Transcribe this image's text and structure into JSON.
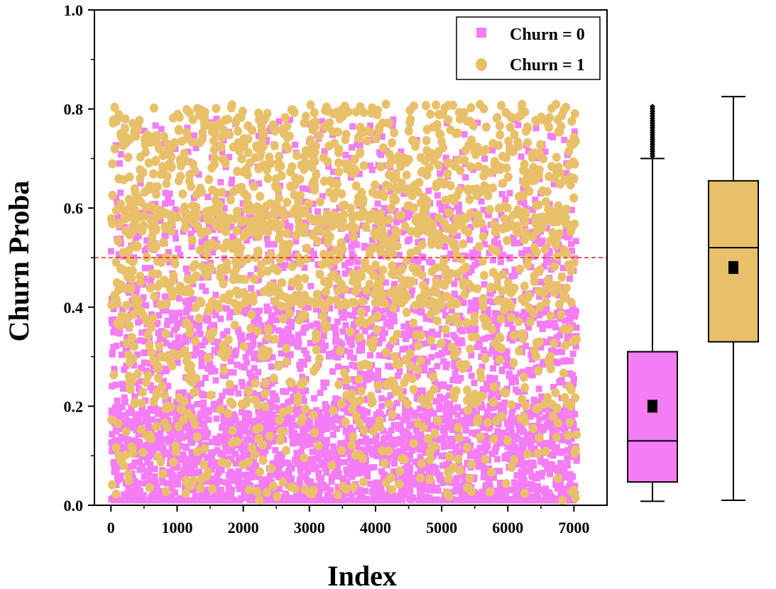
{
  "chart_data": {
    "type": "scatter",
    "xlabel": "Index",
    "ylabel": "Churn Proba",
    "xlim": [
      -250,
      7500
    ],
    "ylim": [
      0.0,
      1.0
    ],
    "xticks": [
      "0",
      "1000",
      "2000",
      "3000",
      "4000",
      "5000",
      "6000",
      "7000"
    ],
    "yticks": [
      "0.0",
      "0.2",
      "0.4",
      "0.6",
      "0.8",
      "1.0"
    ],
    "threshold": 0.5,
    "threshold_color": "#e02020",
    "legend_position": "top-right",
    "series": [
      {
        "name": "Churn = 0",
        "marker": "square",
        "color": "#f47cf4",
        "n_points": 5174,
        "x_range": [
          0,
          7043
        ],
        "y_values_sample": [
          0.02,
          0.05,
          0.08,
          0.12,
          0.15,
          0.2,
          0.25,
          0.3,
          0.35,
          0.4,
          0.45,
          0.5,
          0.55,
          0.6,
          0.7,
          0.78
        ]
      },
      {
        "name": "Churn = 1",
        "marker": "circle",
        "color": "#e9c06a",
        "n_points": 1869,
        "x_range": [
          0,
          7043
        ],
        "y_values_sample": [
          0.03,
          0.1,
          0.2,
          0.3,
          0.4,
          0.5,
          0.55,
          0.6,
          0.65,
          0.7,
          0.75,
          0.8,
          0.82
        ]
      }
    ],
    "boxplots": [
      {
        "series": "Churn = 0",
        "color": "#f47cf4",
        "whisker_low": 0.008,
        "q1": 0.047,
        "median": 0.13,
        "q3": 0.31,
        "whisker_high": 0.7,
        "mean": 0.2,
        "outlier_max": 0.805
      },
      {
        "series": "Churn = 1",
        "color": "#e9c06a",
        "whisker_low": 0.01,
        "q1": 0.33,
        "median": 0.52,
        "q3": 0.655,
        "whisker_high": 0.825,
        "mean": 0.48
      }
    ]
  }
}
